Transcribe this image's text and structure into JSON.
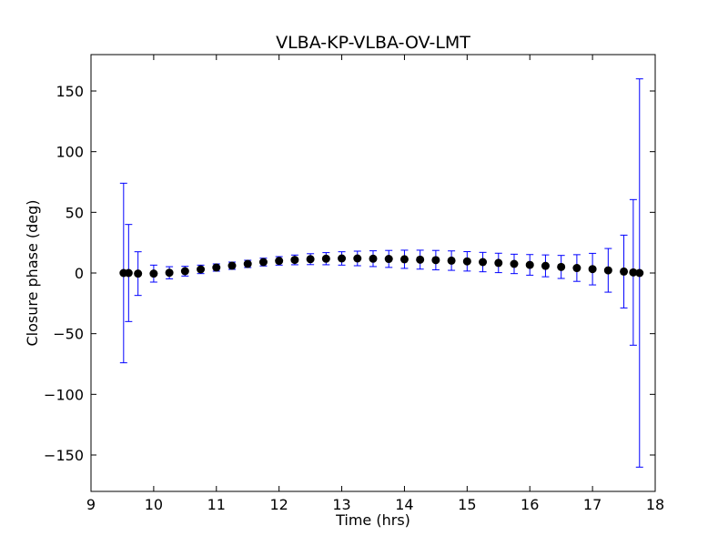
{
  "chart_data": {
    "type": "scatter",
    "title": "VLBA-KP-VLBA-OV-LMT",
    "xlabel": "Time (hrs)",
    "ylabel": "Closure phase (deg)",
    "xlim": [
      9,
      18
    ],
    "ylim": [
      -180,
      180
    ],
    "xticks": [
      9,
      10,
      11,
      12,
      13,
      14,
      15,
      16,
      17,
      18
    ],
    "yticks": [
      -150,
      -100,
      -50,
      0,
      50,
      100,
      150
    ],
    "grid": false,
    "legend": "none",
    "colors": {
      "points": "#000000",
      "errorbars": "#0000ff"
    },
    "series": [
      {
        "x": [
          9.52,
          9.6,
          9.75,
          10.0,
          10.25,
          10.5,
          10.75,
          11.0,
          11.25,
          11.5,
          11.75,
          12.0,
          12.25,
          12.5,
          12.75,
          13.0,
          13.25,
          13.5,
          13.75,
          14.0,
          14.25,
          14.5,
          14.75,
          15.0,
          15.25,
          15.5,
          15.75,
          16.0,
          16.25,
          16.5,
          16.75,
          17.0,
          17.25,
          17.5,
          17.65,
          17.75
        ],
        "y": [
          0,
          0,
          -0.5,
          -0.5,
          0.2,
          1.5,
          3,
          4.5,
          6,
          7.5,
          9,
          10,
          10.8,
          11.4,
          11.8,
          12,
          12,
          11.8,
          11.6,
          11.3,
          11,
          10.6,
          10.2,
          9.6,
          9,
          8.3,
          7.5,
          6.7,
          5.9,
          5,
          4.1,
          3.2,
          2.2,
          1.2,
          0.5,
          0
        ],
        "yerr": [
          74,
          40,
          18,
          7,
          5,
          4,
          3.5,
          3,
          3,
          3,
          3.2,
          3.5,
          4,
          4.5,
          5,
          5.5,
          6,
          6.5,
          7,
          7.5,
          7.8,
          8,
          8,
          8,
          8,
          8,
          8,
          8.5,
          9,
          9.5,
          11,
          13,
          18,
          30,
          60,
          160
        ]
      }
    ]
  }
}
